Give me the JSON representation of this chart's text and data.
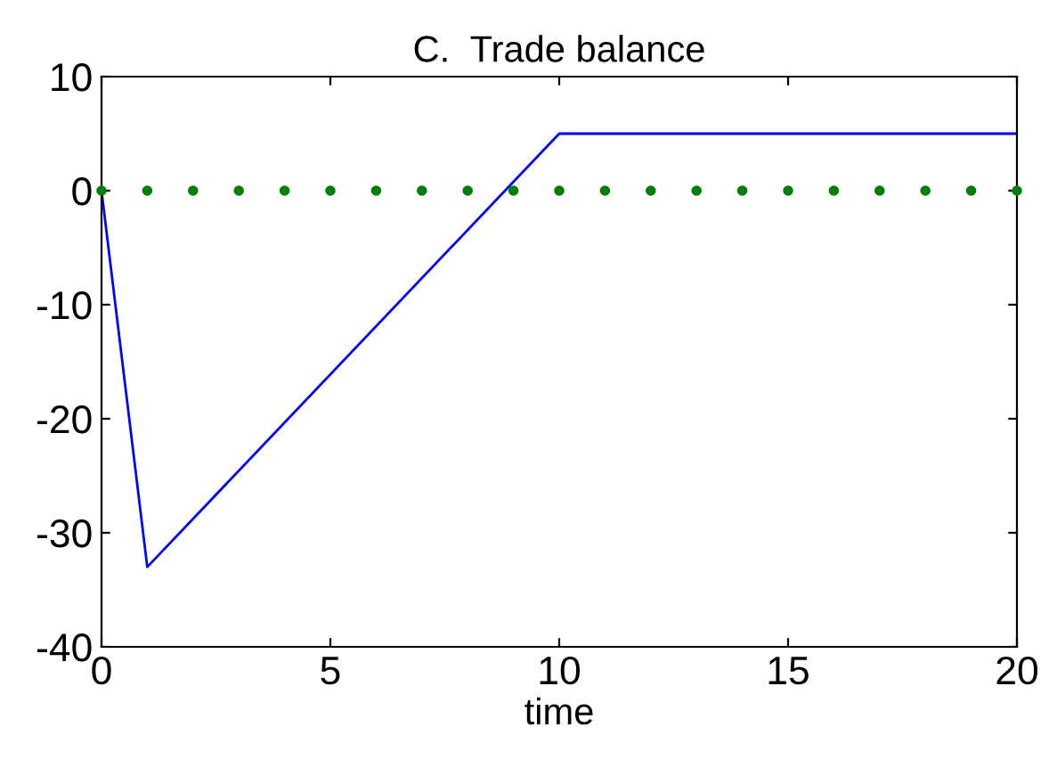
{
  "chart_data": {
    "type": "line",
    "title": "C.  Trade balance",
    "xlabel": "time",
    "xlim": [
      0,
      20
    ],
    "xticks": [
      0,
      5,
      10,
      15,
      20
    ],
    "ylim": [
      -40,
      10
    ],
    "yticks": [
      -40,
      -30,
      -20,
      -10,
      0,
      10
    ],
    "grid": false,
    "legend": false,
    "series": [
      {
        "color": "#0000ff",
        "x": [
          0,
          1,
          10,
          20
        ],
        "values": [
          0,
          -33,
          5,
          5
        ]
      },
      {
        "type": "scatter",
        "color": "#008000",
        "marker": "circle",
        "x": [
          0,
          1,
          2,
          3,
          4,
          5,
          6,
          7,
          8,
          9,
          10,
          11,
          12,
          13,
          14,
          15,
          16,
          17,
          18,
          19,
          20
        ],
        "values": [
          0,
          0,
          0,
          0,
          0,
          0,
          0,
          0,
          0,
          0,
          0,
          0,
          0,
          0,
          0,
          0,
          0,
          0,
          0,
          0,
          0
        ]
      }
    ]
  }
}
